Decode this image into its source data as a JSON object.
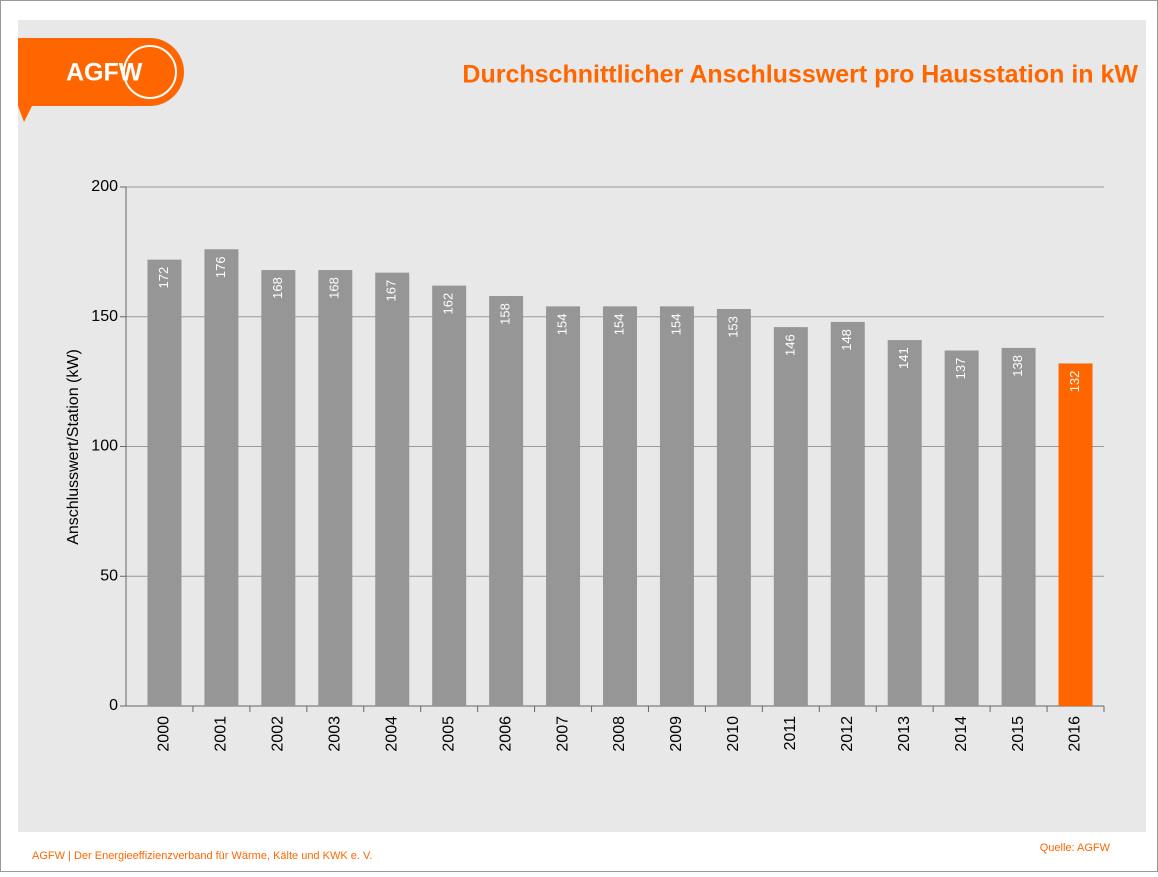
{
  "logo": "AGFW",
  "footer": "AGFW | Der Energieeffizienzverband für Wärme, Kälte und KWK e. V.",
  "source": "Quelle: AGFW",
  "chart_data": {
    "type": "bar",
    "title": "Durchschnittlicher Anschlusswert pro Hausstation in kW",
    "y_label": "Anschlusswert/Station (kW)",
    "categories": [
      "2000",
      "2001",
      "2002",
      "2003",
      "2004",
      "2005",
      "2006",
      "2007",
      "2008",
      "2009",
      "2010",
      "2011",
      "2012",
      "2013",
      "2014",
      "2015",
      "2016"
    ],
    "values": [
      172,
      176,
      168,
      168,
      167,
      162,
      158,
      154,
      154,
      154,
      153,
      146,
      148,
      141,
      137,
      138,
      132
    ],
    "colors": [
      "#969696",
      "#969696",
      "#969696",
      "#969696",
      "#969696",
      "#969696",
      "#969696",
      "#969696",
      "#969696",
      "#969696",
      "#969696",
      "#969696",
      "#969696",
      "#969696",
      "#969696",
      "#969696",
      "#ff6600"
    ],
    "ylim": [
      0,
      200
    ],
    "yticks": [
      0,
      50,
      100,
      150,
      200
    ],
    "grid": true
  }
}
